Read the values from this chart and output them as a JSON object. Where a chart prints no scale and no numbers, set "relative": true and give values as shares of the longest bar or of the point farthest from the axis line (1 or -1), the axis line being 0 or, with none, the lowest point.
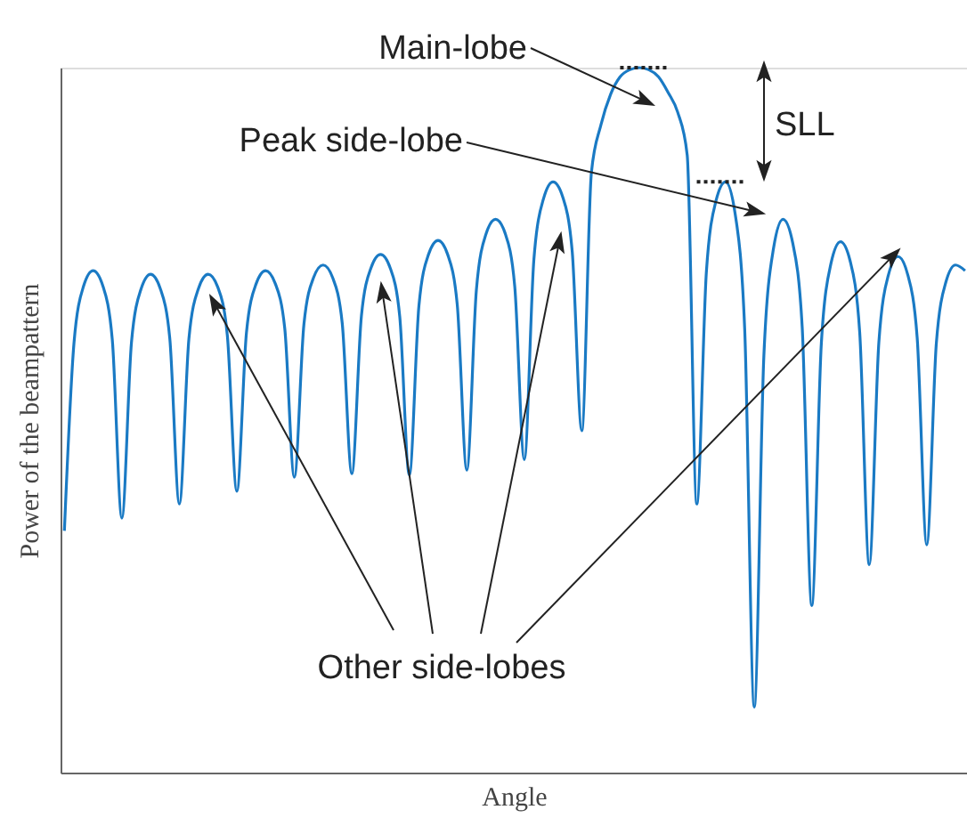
{
  "chart_data": {
    "type": "line",
    "relative": true,
    "xlabel": "Angle",
    "ylabel": "Power of the beampattern",
    "categories": [
      null,
      null,
      null,
      null,
      null,
      null,
      null,
      null,
      null,
      null,
      null,
      null,
      null,
      null,
      null,
      null,
      null,
      null,
      null,
      null,
      null,
      null,
      null,
      null,
      null,
      null,
      null,
      null,
      null,
      null,
      null,
      null,
      null,
      null,
      null,
      null,
      null,
      null,
      null,
      null,
      null,
      null,
      null,
      null,
      null,
      null,
      null,
      null,
      null,
      null,
      null,
      null,
      null,
      null,
      null,
      null,
      null,
      null,
      null,
      null,
      null,
      null,
      null,
      null,
      null,
      null,
      null,
      null,
      null,
      null,
      null,
      null,
      null,
      null,
      null,
      null,
      null,
      null,
      null,
      null,
      null,
      null,
      null,
      null,
      null,
      null,
      null,
      null,
      null,
      null,
      null,
      null,
      null,
      null,
      null
    ],
    "series": [
      {
        "color": "#1a7ac4",
        "values": [
          0.343,
          0.609,
          0.69,
          0.712,
          0.691,
          0.614,
          0.361,
          0.61,
          0.686,
          0.707,
          0.687,
          0.616,
          0.381,
          0.616,
          0.687,
          0.707,
          0.689,
          0.621,
          0.399,
          0.624,
          0.693,
          0.712,
          0.694,
          0.63,
          0.419,
          0.636,
          0.702,
          0.72,
          0.702,
          0.637,
          0.424,
          0.648,
          0.716,
          0.735,
          0.716,
          0.647,
          0.422,
          0.662,
          0.735,
          0.755,
          0.735,
          0.664,
          0.429,
          0.685,
          0.764,
          0.785,
          0.765,
          0.69,
          0.444,
          0.728,
          0.814,
          0.838,
          0.817,
          0.739,
          0.485,
          0.851,
          0.919,
          0.962,
          0.987,
          0.997,
          1.0,
          0.997,
          0.987,
          0.965,
          0.937,
          0.876,
          0.381,
          0.71,
          0.811,
          0.838,
          0.793,
          0.629,
          0.093,
          0.591,
          0.743,
          0.785,
          0.752,
          0.632,
          0.237,
          0.609,
          0.722,
          0.753,
          0.726,
          0.625,
          0.295,
          0.61,
          0.706,
          0.732,
          0.707,
          0.617,
          0.323,
          0.609,
          0.696,
          0.72,
          0.712
        ]
      },
      {
        "color": "#222222",
        "line_style": "dotted",
        "values": [
          null,
          null,
          null,
          null,
          null,
          null,
          null,
          null,
          null,
          null,
          null,
          null,
          null,
          null,
          null,
          null,
          null,
          null,
          null,
          null,
          null,
          null,
          null,
          null,
          null,
          null,
          null,
          null,
          null,
          null,
          null,
          null,
          null,
          null,
          null,
          null,
          null,
          null,
          null,
          null,
          null,
          null,
          null,
          null,
          null,
          null,
          null,
          null,
          null,
          null,
          null,
          null,
          null,
          null,
          null,
          null,
          null,
          null,
          1.0,
          1.0,
          1.0,
          1.0,
          1.0,
          1.0,
          null,
          null,
          null,
          null,
          null,
          null,
          null,
          null,
          null,
          null,
          null,
          null,
          null,
          null,
          null,
          null,
          null,
          null,
          null,
          null,
          null,
          null,
          null,
          null,
          null,
          null,
          null,
          null,
          null,
          null,
          null
        ]
      },
      {
        "color": "#222222",
        "line_style": "dotted",
        "values": [
          null,
          null,
          null,
          null,
          null,
          null,
          null,
          null,
          null,
          null,
          null,
          null,
          null,
          null,
          null,
          null,
          null,
          null,
          null,
          null,
          null,
          null,
          null,
          null,
          null,
          null,
          null,
          null,
          null,
          null,
          null,
          null,
          null,
          null,
          null,
          null,
          null,
          null,
          null,
          null,
          null,
          null,
          null,
          null,
          null,
          null,
          null,
          null,
          null,
          null,
          null,
          null,
          null,
          null,
          null,
          null,
          null,
          null,
          null,
          null,
          null,
          null,
          null,
          null,
          null,
          null,
          0.838,
          0.838,
          0.838,
          0.838,
          0.838,
          0.838,
          null,
          null,
          null,
          null,
          null,
          null,
          null,
          null,
          null,
          null,
          null,
          null,
          null,
          null,
          null,
          null,
          null,
          null,
          null,
          null,
          null,
          null,
          null
        ]
      }
    ],
    "annotations": [
      "Main-lobe",
      "Peak side-lobe",
      "SLL",
      "Other side-lobes"
    ],
    "marker": "none",
    "line_style": "solid"
  }
}
